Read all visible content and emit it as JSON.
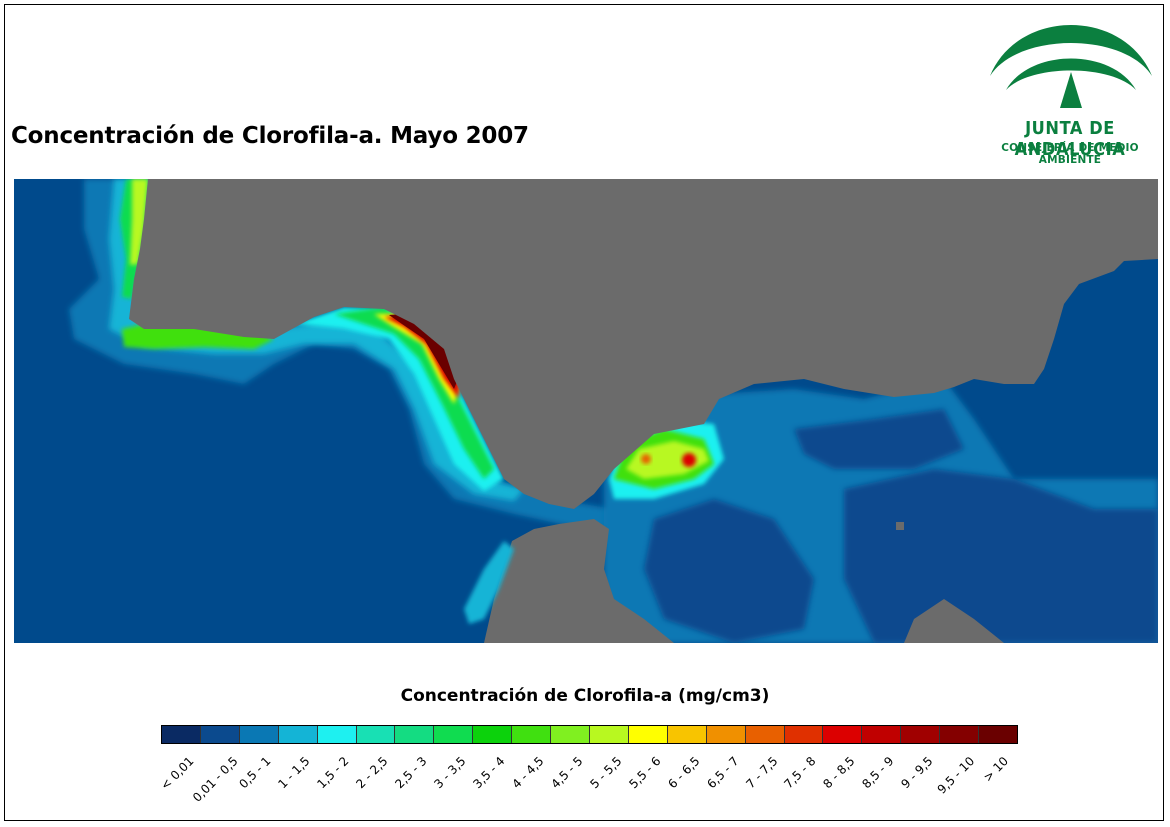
{
  "title": "Concentración de Clorofila-a. Mayo 2007",
  "logo": {
    "name": "JUNTA DE ANDALUCIA",
    "subtitle": "CONSEJERÍA DE MEDIO AMBIENTE",
    "color": "#0b7f3f"
  },
  "map": {
    "land_color": "#6b6b6b",
    "ocean_color": "#004a8c"
  },
  "legend": {
    "title": "Concentración de Clorofila-a (mg/cm3)",
    "classes": [
      {
        "label": "< 0,01",
        "color": "#0a2a63"
      },
      {
        "label": "0,01 - 0,5",
        "color": "#0b4a8e"
      },
      {
        "label": "0,5 - 1",
        "color": "#0a78b4"
      },
      {
        "label": "1 - 1,5",
        "color": "#14b4d6"
      },
      {
        "label": "1,5 - 2",
        "color": "#1ef0f0"
      },
      {
        "label": "2 - 2,5",
        "color": "#18e0b4"
      },
      {
        "label": "2,5 - 3",
        "color": "#14dc82"
      },
      {
        "label": "3 - 3,5",
        "color": "#10dc50"
      },
      {
        "label": "3,5 - 4",
        "color": "#0cd20c"
      },
      {
        "label": "4 - 4,5",
        "color": "#40e010"
      },
      {
        "label": "4,5 - 5",
        "color": "#80f020"
      },
      {
        "label": "5 - 5,5",
        "color": "#b8f820"
      },
      {
        "label": "5,5 - 6",
        "color": "#ffff00"
      },
      {
        "label": "6 - 6,5",
        "color": "#f8c400"
      },
      {
        "label": "6,5 - 7",
        "color": "#f09000"
      },
      {
        "label": "7 - 7,5",
        "color": "#e86000"
      },
      {
        "label": "7,5 - 8",
        "color": "#e03000"
      },
      {
        "label": "8 - 8,5",
        "color": "#dc0000"
      },
      {
        "label": "8,5 - 9",
        "color": "#c00000"
      },
      {
        "label": "9 - 9,5",
        "color": "#a00000"
      },
      {
        "label": "9,5 - 10",
        "color": "#840000"
      },
      {
        "label": "> 10",
        "color": "#6a0000"
      }
    ]
  }
}
